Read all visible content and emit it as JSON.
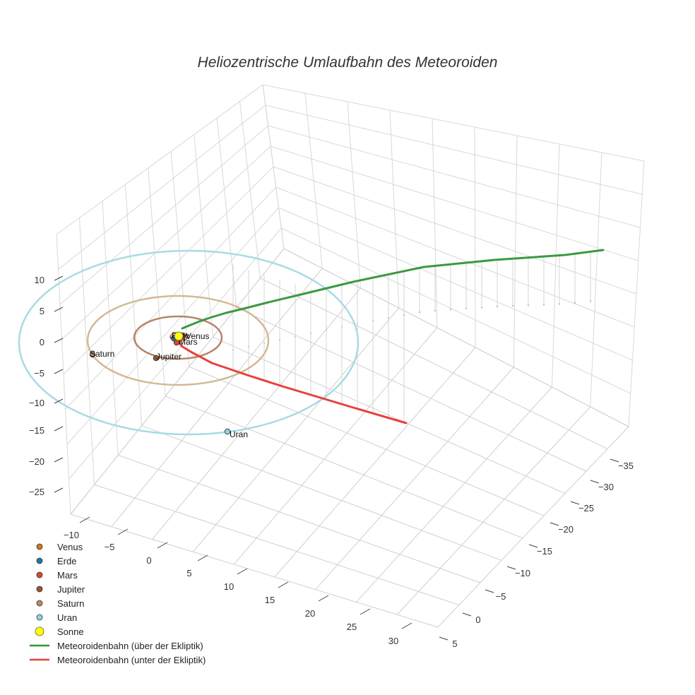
{
  "chart_data": {
    "type": "scatter3d",
    "title": "Heliozentrische Umlaufbahn des Meteoroiden",
    "axes": {
      "x": {
        "ticks": [
          "−10",
          "−5",
          "0",
          "5",
          "10",
          "15",
          "20",
          "25",
          "30"
        ]
      },
      "y": {
        "ticks": [
          "−35",
          "−30",
          "−25",
          "−20",
          "−15",
          "−10",
          "−5",
          "0",
          "5"
        ]
      },
      "z": {
        "ticks": [
          "10",
          "5",
          "0",
          "−5",
          "−10",
          "−15",
          "−20",
          "−25"
        ]
      }
    },
    "planets": [
      {
        "name": "Venus",
        "label": "Venus",
        "color": "#d1771d"
      },
      {
        "name": "Erde",
        "label": "Erde",
        "color": "#1f77b4"
      },
      {
        "name": "Mars",
        "label": "Mars",
        "color": "#d9482b"
      },
      {
        "name": "Jupiter",
        "label": "Jupiter",
        "color": "#a0522d"
      },
      {
        "name": "Saturn",
        "label": "Saturn",
        "color": "#c08a62"
      },
      {
        "name": "Uran",
        "label": "Uran",
        "color": "#8fd3e6"
      }
    ],
    "sun": {
      "name": "Sonne",
      "color": "#ffff00"
    },
    "orbit_colors": {
      "jupiter": "#b5856b",
      "saturn": "#d4b896",
      "uran": "#a8dbe4"
    },
    "series": [
      {
        "name": "Meteoroidenbahn (über der Ekliptik)",
        "color": "#3a9a3f"
      },
      {
        "name": "Meteoroidenbahn (unter der Ekliptik)",
        "color": "#e8403c"
      }
    ],
    "legend": [
      {
        "label": "Venus",
        "kind": "marker",
        "color": "#d1771d"
      },
      {
        "label": "Erde",
        "kind": "marker",
        "color": "#1f77b4"
      },
      {
        "label": "Mars",
        "kind": "marker",
        "color": "#d9482b"
      },
      {
        "label": "Jupiter",
        "kind": "marker",
        "color": "#a0522d"
      },
      {
        "label": "Saturn",
        "kind": "marker",
        "color": "#c08a62"
      },
      {
        "label": "Uran",
        "kind": "marker",
        "color": "#8fd3e6"
      },
      {
        "label": "Sonne",
        "kind": "bigmarker",
        "color": "#ffff00"
      },
      {
        "label": "Meteoroidenbahn (über der Ekliptik)",
        "kind": "line",
        "color": "#2a9d2a"
      },
      {
        "label": "Meteoroidenbahn (unter der Ekliptik)",
        "kind": "line",
        "color": "#e8403c"
      }
    ],
    "legend_position": "bottom-left",
    "grid": true
  }
}
